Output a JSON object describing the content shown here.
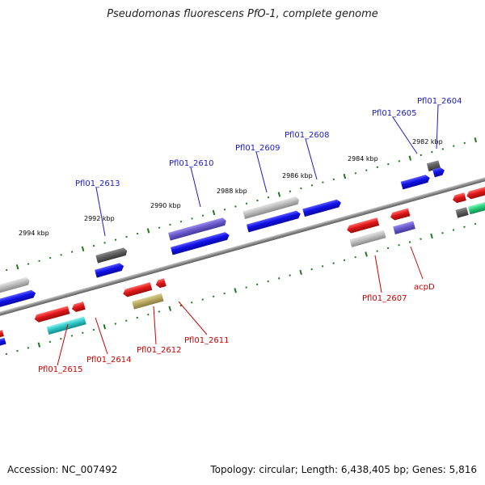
{
  "title": "Pseudomonas fluorescens PfO-1, complete genome",
  "footer": {
    "accession": "Accession: NC_007492",
    "summary": "Topology: circular; Length: 6,438,405 bp; Genes: 5,816"
  },
  "colors": {
    "backbone": "#8a8a8a",
    "tick_dots": "#1f7a1f",
    "label_top": "#1a1acc",
    "label_bottom": "#cc0000",
    "gene_red": "#e01818",
    "gene_blue": "#1010e8",
    "gene_gray": "#bdbdbd",
    "gene_darkgray": "#5e5e5e",
    "gene_violet": "#6a5acd",
    "gene_cyan": "#2ec7c7",
    "gene_olive": "#b8aa62",
    "gene_green": "#22d07a"
  },
  "scale_ticks": [
    {
      "label": "2994 kbp"
    },
    {
      "label": "2992 kbp"
    },
    {
      "label": "2990 kbp"
    },
    {
      "label": "2988 kbp"
    },
    {
      "label": "2986 kbp"
    },
    {
      "label": "2984 kbp"
    },
    {
      "label": "2982 kbp"
    }
  ],
  "gene_labels_top": [
    {
      "text": "Pfl01_2613"
    },
    {
      "text": "Pfl01_2610"
    },
    {
      "text": "Pfl01_2609"
    },
    {
      "text": "Pfl01_2608"
    },
    {
      "text": "Pfl01_2605"
    },
    {
      "text": "Pfl01_2604"
    }
  ],
  "gene_labels_bottom": [
    {
      "text": "Pfl01_2615"
    },
    {
      "text": "Pfl01_2614"
    },
    {
      "text": "Pfl01_2612"
    },
    {
      "text": "Pfl01_2611"
    },
    {
      "text": "Pfl01_2607"
    },
    {
      "text": "acpD"
    }
  ]
}
